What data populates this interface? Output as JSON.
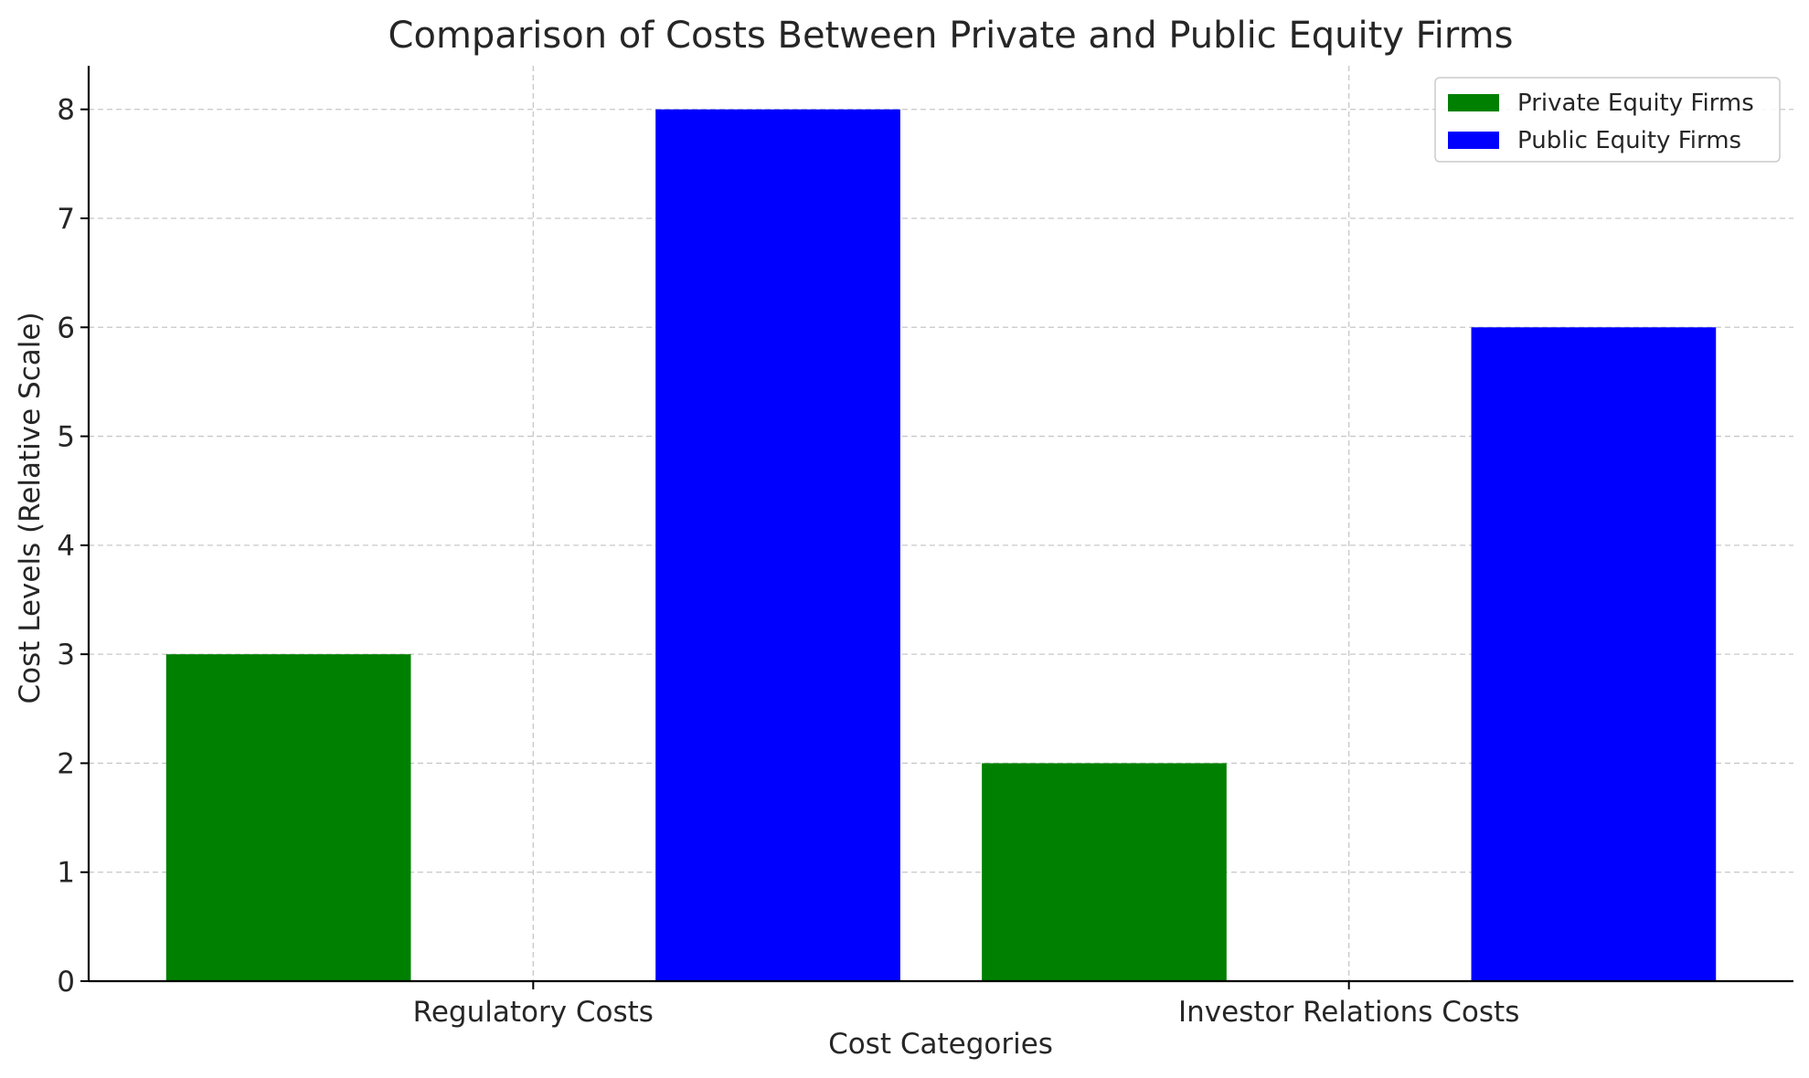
{
  "chart_data": {
    "type": "bar",
    "title": "Comparison of Costs Between Private and Public Equity Firms",
    "xlabel": "Cost Categories",
    "ylabel": "Cost Levels (Relative Scale)",
    "categories": [
      "Regulatory Costs",
      "Investor Relations Costs"
    ],
    "series": [
      {
        "name": "Private Equity Firms",
        "values": [
          3,
          2
        ],
        "color": "#008000"
      },
      {
        "name": "Public Equity Firms",
        "values": [
          8,
          6
        ],
        "color": "#0000ff"
      }
    ],
    "ylim": [
      0,
      8.4
    ],
    "yticks": [
      0,
      1,
      2,
      3,
      4,
      5,
      6,
      7,
      8
    ],
    "grid": true,
    "legend_position": "top-right"
  }
}
